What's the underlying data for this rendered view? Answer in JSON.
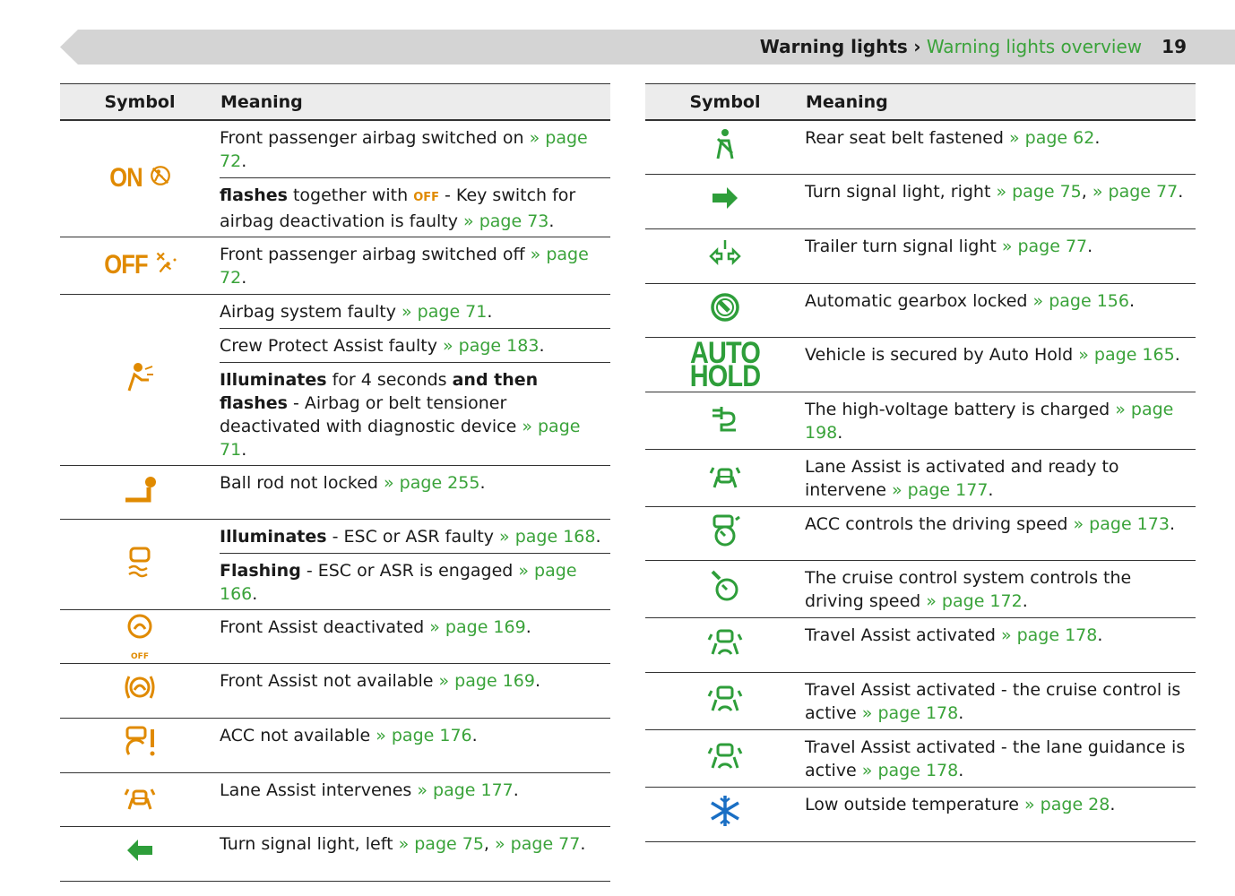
{
  "header": {
    "section": "Warning lights",
    "separator": "›",
    "subsection": "Warning lights overview",
    "page": "19"
  },
  "left": {
    "columns": [
      "Symbol",
      "Meaning"
    ],
    "rows": [
      {
        "symbol": {
          "text": "ON",
          "icon": "airbag-slash",
          "color": "#e08a00"
        },
        "meanings": [
          [
            {
              "t": "Front passenger airbag switched on "
            },
            {
              "l": "» page 72"
            },
            {
              "t": "."
            }
          ],
          [
            {
              "b": "flashes"
            },
            {
              "t": " together with "
            },
            {
              "i": "OFF"
            },
            {
              "t": " - Key switch for airbag deactivation is faulty "
            },
            {
              "l": "» page 73"
            },
            {
              "t": "."
            }
          ]
        ]
      },
      {
        "symbol": {
          "text": "OFF",
          "icon": "airbag-x",
          "color": "#e08a00"
        },
        "meanings": [
          [
            {
              "t": "Front passenger airbag switched off "
            },
            {
              "l": "» page 72"
            },
            {
              "t": "."
            }
          ]
        ]
      },
      {
        "symbol": {
          "icon": "airbag",
          "color": "#e08a00"
        },
        "meanings": [
          [
            {
              "t": "Airbag system faulty "
            },
            {
              "l": "» page 71"
            },
            {
              "t": "."
            }
          ],
          [
            {
              "t": "Crew Protect Assist faulty "
            },
            {
              "l": "» page 183"
            },
            {
              "t": "."
            }
          ],
          [
            {
              "b": "Illuminates"
            },
            {
              "t": " for 4 seconds "
            },
            {
              "b": "and then flashes"
            },
            {
              "t": " - Airbag or belt tensioner deactivated with diagnostic device "
            },
            {
              "l": "» page 71"
            },
            {
              "t": "."
            }
          ]
        ]
      },
      {
        "symbol": {
          "icon": "ballrod",
          "color": "#e08a00"
        },
        "meanings": [
          [
            {
              "t": "Ball rod not locked "
            },
            {
              "l": "» page 255"
            },
            {
              "t": "."
            }
          ]
        ]
      },
      {
        "symbol": {
          "icon": "esc",
          "color": "#e08a00"
        },
        "meanings": [
          [
            {
              "b": "Illuminates"
            },
            {
              "t": " - ESC or ASR faulty "
            },
            {
              "l": "» page 168"
            },
            {
              "t": "."
            }
          ],
          [
            {
              "b": "Flashing"
            },
            {
              "t": " - ESC or ASR is engaged "
            },
            {
              "l": "» page 166"
            },
            {
              "t": "."
            }
          ]
        ]
      },
      {
        "symbol": {
          "icon": "front-off",
          "sub": "OFF",
          "color": "#e08a00"
        },
        "meanings": [
          [
            {
              "t": "Front Assist deactivated "
            },
            {
              "l": "» page 169"
            },
            {
              "t": "."
            }
          ]
        ]
      },
      {
        "symbol": {
          "icon": "front",
          "color": "#e08a00"
        },
        "meanings": [
          [
            {
              "t": "Front Assist not available "
            },
            {
              "l": "» page 169"
            },
            {
              "t": "."
            }
          ]
        ]
      },
      {
        "symbol": {
          "icon": "acc-warn",
          "color": "#e08a00"
        },
        "meanings": [
          [
            {
              "t": "ACC not available "
            },
            {
              "l": "» page 176"
            },
            {
              "t": "."
            }
          ]
        ]
      },
      {
        "symbol": {
          "icon": "lane",
          "color": "#e08a00"
        },
        "meanings": [
          [
            {
              "t": "Lane Assist intervenes "
            },
            {
              "l": "» page 177"
            },
            {
              "t": "."
            }
          ]
        ]
      },
      {
        "symbol": {
          "icon": "arrow-left",
          "color": "#2e9e3a"
        },
        "meanings": [
          [
            {
              "t": "Turn signal light, left "
            },
            {
              "l": "» page 75"
            },
            {
              "t": ", "
            },
            {
              "l": "» page 77"
            },
            {
              "t": "."
            }
          ]
        ]
      }
    ]
  },
  "right": {
    "columns": [
      "Symbol",
      "Meaning"
    ],
    "rows": [
      {
        "symbol": {
          "icon": "belt",
          "color": "#2e9e3a"
        },
        "meanings": [
          [
            {
              "t": "Rear seat belt fastened "
            },
            {
              "l": "» page 62"
            },
            {
              "t": "."
            }
          ]
        ]
      },
      {
        "symbol": {
          "icon": "arrow-right",
          "color": "#2e9e3a"
        },
        "meanings": [
          [
            {
              "t": "Turn signal light, right "
            },
            {
              "l": "» page 75"
            },
            {
              "t": ", "
            },
            {
              "l": "» page 77"
            },
            {
              "t": "."
            }
          ]
        ]
      },
      {
        "symbol": {
          "icon": "trailer",
          "color": "#2e9e3a"
        },
        "meanings": [
          [
            {
              "t": "Trailer turn signal light "
            },
            {
              "l": "» page 77"
            },
            {
              "t": "."
            }
          ]
        ]
      },
      {
        "symbol": {
          "icon": "gear",
          "color": "#2e9e3a"
        },
        "meanings": [
          [
            {
              "t": "Automatic gearbox locked "
            },
            {
              "l": "» page 156"
            },
            {
              "t": "."
            }
          ]
        ]
      },
      {
        "symbol": {
          "text": "AUTO HOLD",
          "color": "#2e9e3a"
        },
        "meanings": [
          [
            {
              "t": "Vehicle is secured by Auto Hold "
            },
            {
              "l": "» page 165"
            },
            {
              "t": "."
            }
          ]
        ]
      },
      {
        "symbol": {
          "icon": "plug",
          "color": "#2e9e3a"
        },
        "meanings": [
          [
            {
              "t": "The high-voltage battery is charged "
            },
            {
              "l": "» page 198"
            },
            {
              "t": "."
            }
          ]
        ]
      },
      {
        "symbol": {
          "icon": "lane",
          "color": "#2e9e3a"
        },
        "meanings": [
          [
            {
              "t": "Lane Assist is activated and ready to intervene "
            },
            {
              "l": "» page 177"
            },
            {
              "t": "."
            }
          ]
        ]
      },
      {
        "symbol": {
          "icon": "acc",
          "color": "#2e9e3a"
        },
        "meanings": [
          [
            {
              "t": "ACC controls the driving speed "
            },
            {
              "l": "» page 173"
            },
            {
              "t": "."
            }
          ]
        ]
      },
      {
        "symbol": {
          "icon": "cruise",
          "color": "#2e9e3a"
        },
        "meanings": [
          [
            {
              "t": "The cruise control system controls the driving speed "
            },
            {
              "l": "» page 172"
            },
            {
              "t": "."
            }
          ]
        ]
      },
      {
        "symbol": {
          "icon": "travel",
          "color": "#2e9e3a"
        },
        "meanings": [
          [
            {
              "t": "Travel Assist activated "
            },
            {
              "l": "» page 178"
            },
            {
              "t": "."
            }
          ]
        ]
      },
      {
        "symbol": {
          "icon": "travel",
          "color": "#2e9e3a"
        },
        "meanings": [
          [
            {
              "t": "Travel Assist activated - the cruise control is active "
            },
            {
              "l": "» page 178"
            },
            {
              "t": "."
            }
          ]
        ]
      },
      {
        "symbol": {
          "icon": "travel",
          "color": "#2e9e3a"
        },
        "meanings": [
          [
            {
              "t": "Travel Assist activated - the lane guidance is active "
            },
            {
              "l": "» page 178"
            },
            {
              "t": "."
            }
          ]
        ]
      },
      {
        "symbol": {
          "icon": "snow",
          "color": "#1a6fc4"
        },
        "meanings": [
          [
            {
              "t": "Low outside temperature "
            },
            {
              "l": "» page 28"
            },
            {
              "t": "."
            }
          ]
        ]
      }
    ]
  }
}
